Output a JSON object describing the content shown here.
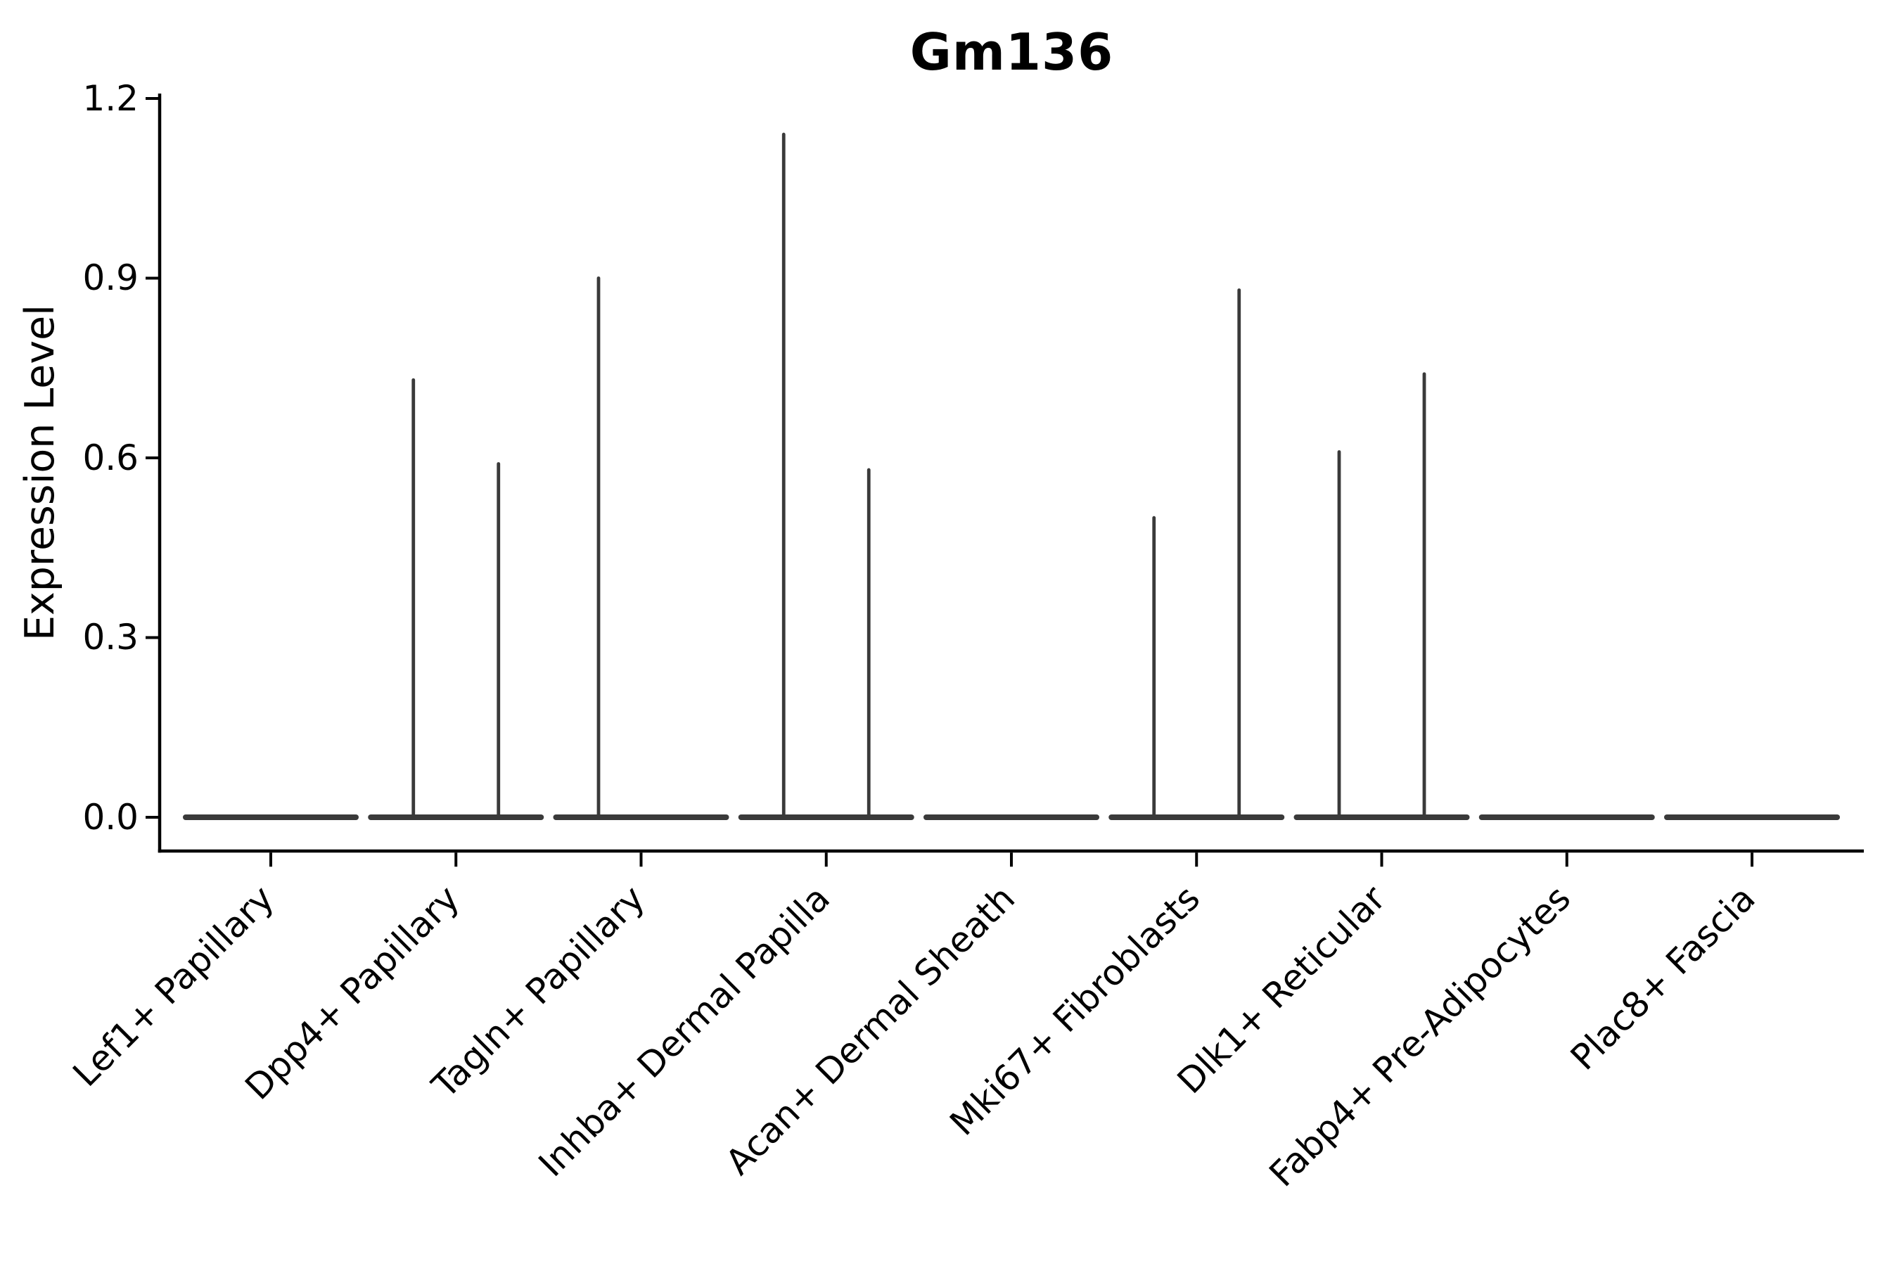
{
  "chart_data": {
    "type": "violin",
    "title": "Gm136",
    "xlabel": "",
    "ylabel": "Expression Level",
    "ylim": [
      -0.056,
      1.207
    ],
    "ytick_labels": [
      "0.0",
      "0.3",
      "0.6",
      "0.9",
      "1.2"
    ],
    "ytick_values": [
      0.0,
      0.3,
      0.6,
      0.9,
      1.2
    ],
    "grid": false,
    "legend_position": "none",
    "splits_per_category": 2,
    "categories": [
      "Lef1+ Papillary",
      "Dpp4+ Papillary",
      "Tagln+ Papillary",
      "Inhba+ Dermal Papilla",
      "Acan+ Dermal Sheath",
      "Mki67+ Fibroblasts",
      "Dlk1+ Reticular",
      "Fabp4+ Pre-Adipocytes",
      "Plac8+ Fascia"
    ],
    "violins": [
      {
        "category": "Lef1+ Papillary",
        "spike_maxima": [
          0,
          0
        ]
      },
      {
        "category": "Dpp4+ Papillary",
        "spike_maxima": [
          0.73,
          0.59
        ]
      },
      {
        "category": "Tagln+ Papillary",
        "spike_maxima": [
          0.9,
          0
        ]
      },
      {
        "category": "Inhba+ Dermal Papilla",
        "spike_maxima": [
          1.14,
          0.58
        ]
      },
      {
        "category": "Acan+ Dermal Sheath",
        "spike_maxima": [
          0,
          0
        ]
      },
      {
        "category": "Mki67+ Fibroblasts",
        "spike_maxima": [
          0.5,
          0.88
        ]
      },
      {
        "category": "Dlk1+ Reticular",
        "spike_maxima": [
          0.61,
          0.74
        ]
      },
      {
        "category": "Fabp4+ Pre-Adipocytes",
        "spike_maxima": [
          0,
          0
        ]
      },
      {
        "category": "Plac8+ Fascia",
        "spike_maxima": [
          0,
          0
        ]
      }
    ]
  },
  "style": {
    "background_color": "#ffffff",
    "axis_color": "#000000",
    "text_color": "#000000",
    "violin_color": "#3a3a3a"
  }
}
